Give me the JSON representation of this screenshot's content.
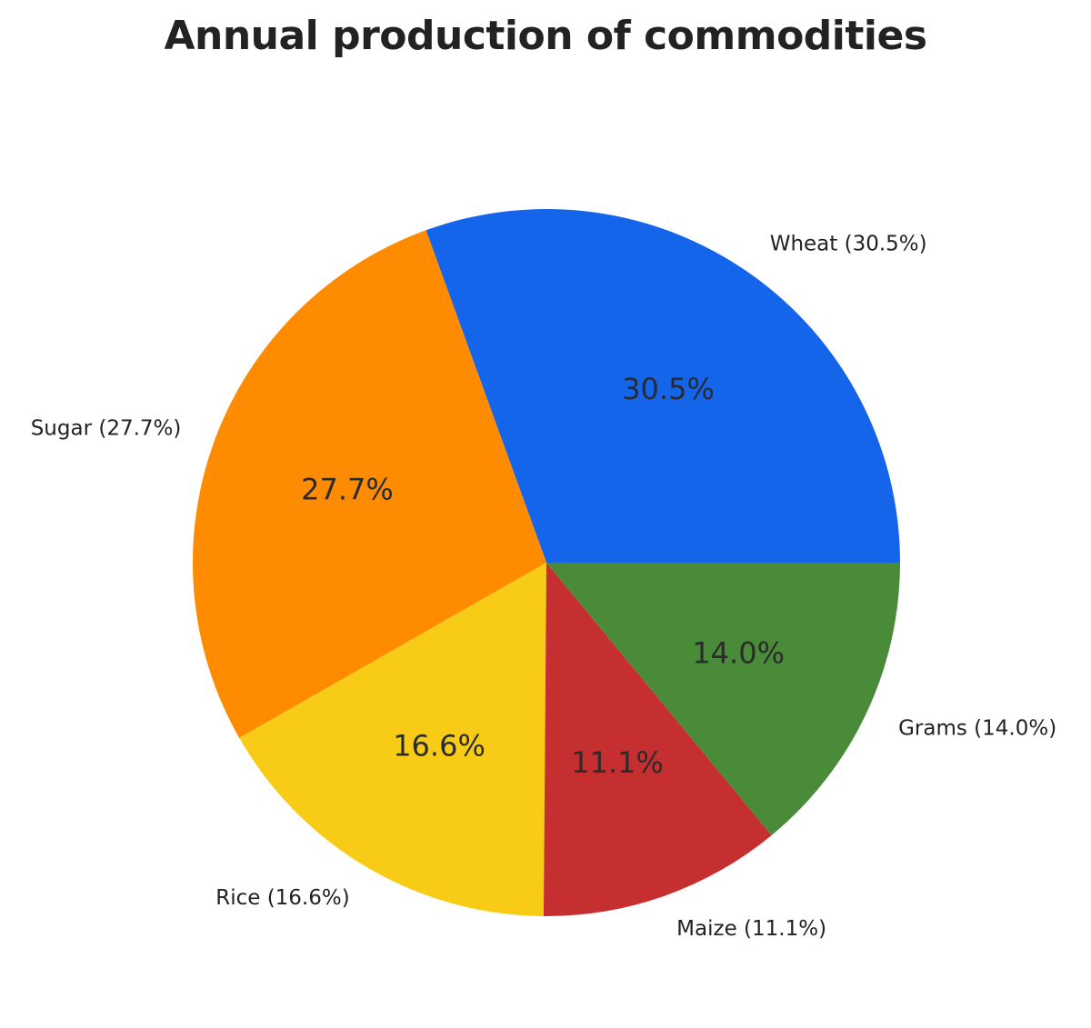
{
  "chart_data": {
    "type": "pie",
    "title": "Annual production of commodities",
    "start_angle_deg": 0,
    "direction": "counterclockwise",
    "slices": [
      {
        "label": "Wheat",
        "value": 30.5,
        "display_label": "Wheat (30.5%)",
        "pct_label": "30.5%",
        "color": "#1565EA"
      },
      {
        "label": "Sugar",
        "value": 27.7,
        "display_label": "Sugar (27.7%)",
        "pct_label": "27.7%",
        "color": "#FF8C00"
      },
      {
        "label": "Rice",
        "value": 16.6,
        "display_label": "Rice (16.6%)",
        "pct_label": "16.6%",
        "color": "#F8CC16"
      },
      {
        "label": "Maize",
        "value": 11.1,
        "display_label": "Maize (11.1%)",
        "pct_label": "11.1%",
        "color": "#C62F2F"
      },
      {
        "label": "Grams",
        "value": 14.0,
        "display_label": "Grams (14.0%)",
        "pct_label": "14.0%",
        "color": "#4A8B3A"
      }
    ]
  }
}
